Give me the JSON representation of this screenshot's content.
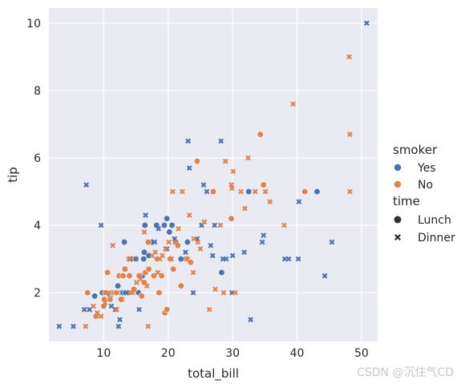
{
  "chart_data": {
    "type": "scatter",
    "title": "",
    "xlabel": "total_bill",
    "ylabel": "tip",
    "xlim": [
      1.5,
      52.5
    ],
    "ylim": [
      0.55,
      10.45
    ],
    "xticks": [
      10,
      20,
      30,
      40,
      50
    ],
    "yticks": [
      2,
      4,
      6,
      8,
      10
    ],
    "grid": true,
    "legend_placement": "right",
    "legend": {
      "hue": {
        "title": "smoker",
        "entries": [
          "Yes",
          "No"
        ]
      },
      "style": {
        "title": "time",
        "entries": [
          "Lunch",
          "Dinner"
        ]
      }
    },
    "colors": {
      "Yes": "#4c72b0",
      "No": "#dd8452",
      "background": "#eaeaf2",
      "grid": "#ffffff"
    },
    "series": [
      {
        "smoker": "Yes",
        "time": "Lunch",
        "marker": "circle",
        "points": [
          [
            8.6,
            1.9
          ],
          [
            9.8,
            2
          ],
          [
            10.3,
            2
          ],
          [
            11,
            1.9
          ],
          [
            12.2,
            2.2
          ],
          [
            12.7,
            2
          ],
          [
            13,
            2
          ],
          [
            13.2,
            3.5
          ],
          [
            13.4,
            2
          ],
          [
            15.4,
            2
          ],
          [
            16,
            2.5
          ],
          [
            16.2,
            3
          ],
          [
            16.3,
            3.2
          ],
          [
            16.4,
            4
          ],
          [
            17,
            3.1
          ],
          [
            17.5,
            3.5
          ],
          [
            18.2,
            4
          ],
          [
            19.4,
            4
          ],
          [
            19.8,
            4.2
          ],
          [
            20.2,
            3.8
          ],
          [
            20.6,
            4
          ],
          [
            21.2,
            3.5
          ],
          [
            22,
            3
          ],
          [
            23,
            3.5
          ],
          [
            32.5,
            5
          ],
          [
            28.3,
            2.6
          ],
          [
            43.1,
            5
          ]
        ]
      },
      {
        "smoker": "No",
        "time": "Lunch",
        "marker": "circle",
        "points": [
          [
            7.5,
            2
          ],
          [
            8.8,
            1.3
          ],
          [
            10,
            1.6
          ],
          [
            10.1,
            1.8
          ],
          [
            10.3,
            2
          ],
          [
            10.6,
            2.6
          ],
          [
            11,
            1.8
          ],
          [
            11.2,
            2
          ],
          [
            11.6,
            2
          ],
          [
            12,
            2
          ],
          [
            12.4,
            2.5
          ],
          [
            12.7,
            1.8
          ],
          [
            13,
            2.5
          ],
          [
            13.3,
            2.7
          ],
          [
            13.8,
            2
          ],
          [
            14,
            2.5
          ],
          [
            14.3,
            3
          ],
          [
            14.7,
            2.1
          ],
          [
            15,
            3
          ],
          [
            15.5,
            2.5
          ],
          [
            15.9,
            1.9
          ],
          [
            16.3,
            2.3
          ],
          [
            16.5,
            2.6
          ],
          [
            16.9,
            3.5
          ],
          [
            17,
            2.7
          ],
          [
            17.8,
            2.5
          ],
          [
            18.3,
            3
          ],
          [
            18.6,
            2
          ],
          [
            19,
            2.5
          ],
          [
            19.5,
            1.4
          ],
          [
            19.8,
            1.5
          ],
          [
            20.3,
            3
          ],
          [
            20.8,
            2.7
          ],
          [
            21.5,
            3.4
          ],
          [
            22,
            2.2
          ],
          [
            23,
            3
          ],
          [
            23.5,
            2.9
          ],
          [
            24.5,
            5.9
          ],
          [
            27,
            5
          ],
          [
            29.8,
            4.2
          ],
          [
            34.3,
            6.7
          ],
          [
            34.8,
            5.2
          ],
          [
            41.2,
            5
          ]
        ]
      },
      {
        "smoker": "Yes",
        "time": "Dinner",
        "marker": "x",
        "points": [
          [
            3.1,
            1
          ],
          [
            5.3,
            1
          ],
          [
            7,
            1.5
          ],
          [
            7.3,
            5.2
          ],
          [
            7.8,
            1.5
          ],
          [
            9.6,
            4
          ],
          [
            11.2,
            1.6
          ],
          [
            11.8,
            1.5
          ],
          [
            12.3,
            1
          ],
          [
            12.5,
            1.2
          ],
          [
            13.5,
            2
          ],
          [
            14.1,
            3
          ],
          [
            15,
            3
          ],
          [
            15.5,
            1.5
          ],
          [
            16.5,
            4.3
          ],
          [
            17.9,
            3.5
          ],
          [
            18.5,
            3.9
          ],
          [
            19.8,
            3.3
          ],
          [
            21,
            3.6
          ],
          [
            22.7,
            3.2
          ],
          [
            23.1,
            6.5
          ],
          [
            23.3,
            5.7
          ],
          [
            23.9,
            2
          ],
          [
            24.5,
            3.6
          ],
          [
            25.2,
            4
          ],
          [
            25.5,
            5.2
          ],
          [
            26,
            5
          ],
          [
            26.6,
            3.4
          ],
          [
            26.9,
            3.1
          ],
          [
            27.2,
            4
          ],
          [
            28.2,
            6.5
          ],
          [
            28.5,
            3
          ],
          [
            29,
            3
          ],
          [
            29.9,
            2
          ],
          [
            30,
            3.1
          ],
          [
            31.8,
            3.2
          ],
          [
            32.8,
            1.2
          ],
          [
            34.6,
            3.5
          ],
          [
            34.8,
            3.7
          ],
          [
            38.1,
            3
          ],
          [
            38.7,
            3
          ],
          [
            40.2,
            3
          ],
          [
            40.3,
            4.7
          ],
          [
            44.3,
            2.5
          ],
          [
            45.4,
            3.5
          ],
          [
            50.8,
            10
          ]
        ]
      },
      {
        "smoker": "No",
        "time": "Dinner",
        "marker": "x",
        "points": [
          [
            7.2,
            1
          ],
          [
            8.4,
            1.6
          ],
          [
            9,
            1.4
          ],
          [
            9.6,
            1.3
          ],
          [
            10.2,
            1.7
          ],
          [
            10.8,
            2
          ],
          [
            11.4,
            3.4
          ],
          [
            12,
            1.5
          ],
          [
            12.8,
            1.8
          ],
          [
            13.3,
            2.7
          ],
          [
            13.9,
            3
          ],
          [
            14.5,
            2
          ],
          [
            15.1,
            2.3
          ],
          [
            15.7,
            2.4
          ],
          [
            16.3,
            3.8
          ],
          [
            16.7,
            2.2
          ],
          [
            16.9,
            1
          ],
          [
            17.5,
            3.1
          ],
          [
            18,
            3.2
          ],
          [
            18.4,
            2.6
          ],
          [
            18.7,
            3
          ],
          [
            19.1,
            3.1
          ],
          [
            19.6,
            3.3
          ],
          [
            20.1,
            3.5
          ],
          [
            20.5,
            3
          ],
          [
            20.7,
            5
          ],
          [
            21.1,
            3.5
          ],
          [
            21.6,
            3.9
          ],
          [
            22.2,
            5
          ],
          [
            22.8,
            3
          ],
          [
            23.3,
            4.3
          ],
          [
            23.9,
            2.6
          ],
          [
            24,
            3.6
          ],
          [
            24.6,
            3.5
          ],
          [
            25,
            3.3
          ],
          [
            25.6,
            4.1
          ],
          [
            26.4,
            1.5
          ],
          [
            27.3,
            2.1
          ],
          [
            28.1,
            4
          ],
          [
            28.6,
            2
          ],
          [
            28.9,
            5.9
          ],
          [
            29.8,
            5.2
          ],
          [
            29.9,
            5.1
          ],
          [
            30.1,
            5.6
          ],
          [
            30.4,
            2
          ],
          [
            31.3,
            5
          ],
          [
            31.9,
            4.5
          ],
          [
            32.4,
            6
          ],
          [
            33.5,
            5
          ],
          [
            35.1,
            5
          ],
          [
            35.8,
            4.7
          ],
          [
            38,
            4
          ],
          [
            39.4,
            7.6
          ],
          [
            48.1,
            9
          ],
          [
            48.2,
            6.7
          ],
          [
            48.2,
            5
          ]
        ]
      }
    ]
  },
  "watermark": "CSDN @沉住气CD"
}
